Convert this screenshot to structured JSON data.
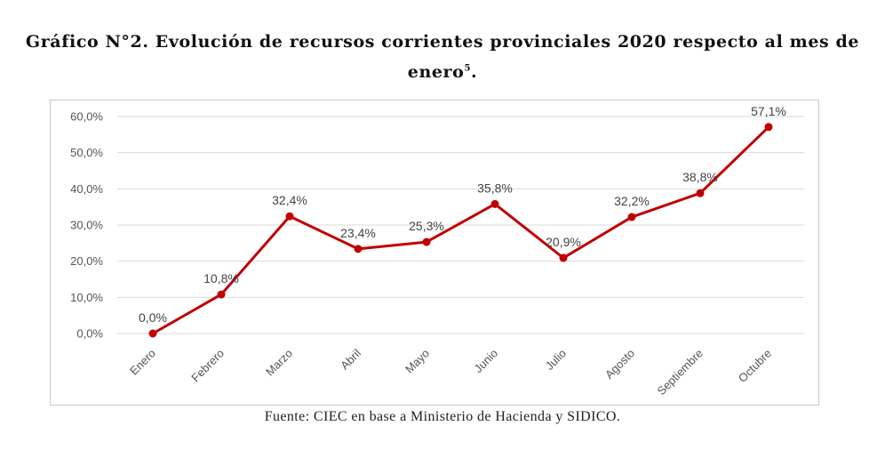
{
  "header": {
    "title_line1": "Gráfico N°2. Evolución de recursos corrientes provinciales 2020 respecto al mes de",
    "title_line2": "enero",
    "title_footnote": "5",
    "title_end": "."
  },
  "footer": {
    "source": "Fuente: CIEC en base a Ministerio de Hacienda y SIDICO."
  },
  "chart_data": {
    "type": "line",
    "title": "Gráfico N°2. Evolución de recursos corrientes provinciales 2020 respecto al mes de enero.",
    "categories": [
      "Enero",
      "Febrero",
      "Marzo",
      "Abril",
      "Mayo",
      "Junio",
      "Julio",
      "Agosto",
      "Septiembre",
      "Octubre"
    ],
    "series": [
      {
        "values": [
          0.0,
          10.8,
          32.4,
          23.4,
          25.3,
          35.8,
          20.9,
          32.2,
          38.8,
          57.1
        ],
        "labels": [
          "0,0%",
          "10,8%",
          "32,4%",
          "23,4%",
          "25,3%",
          "35,8%",
          "20,9%",
          "32,2%",
          "38,8%",
          "57,1%"
        ]
      }
    ],
    "ylim": [
      0,
      60
    ],
    "yticks": [
      0,
      10,
      20,
      30,
      40,
      50,
      60
    ],
    "ytick_labels": [
      "0,0%",
      "10,0%",
      "20,0%",
      "30,0%",
      "40,0%",
      "50,0%",
      "60,0%"
    ],
    "grid": true,
    "legend": "none",
    "colors": {
      "line": "#c00000",
      "grid": "#d9d9d9",
      "text": "#595959"
    }
  }
}
